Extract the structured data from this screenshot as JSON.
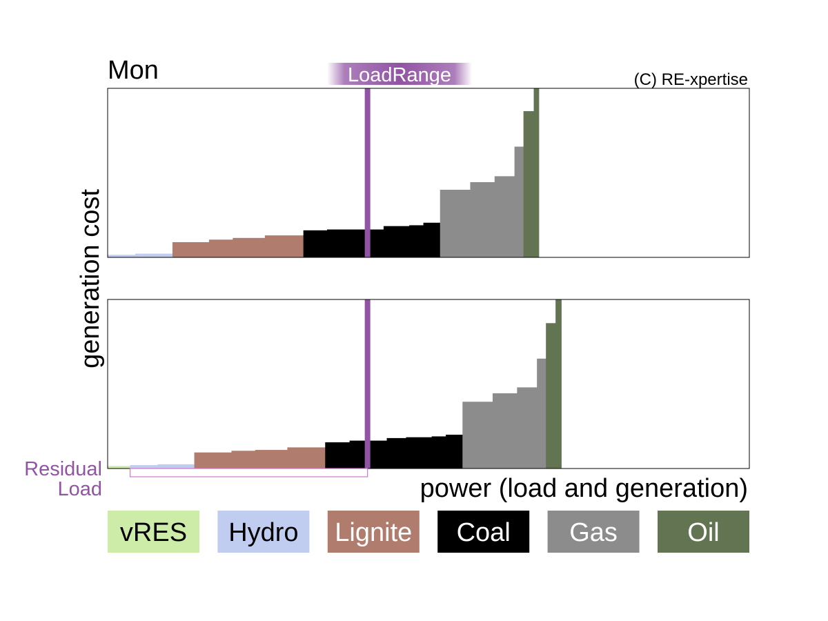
{
  "day_label": "Mon",
  "badge_label": "LoadRange",
  "copyright": "(C) RE-xpertise",
  "ylabel": "generation cost",
  "xlabel": "power (load and generation)",
  "residual_label": {
    "line1": "Residual",
    "line2": "Load"
  },
  "colors": {
    "vRES": "#cdeca8",
    "Hydro": "#c1cdf0",
    "Lignite": "#b07c6e",
    "Coal": "#000000",
    "Gas": "#8c8c8c",
    "Oil": "#637452",
    "load_marker": "#9154a4",
    "residual_box": "#cc77cc"
  },
  "legend": [
    {
      "name": "vRES",
      "text_color": "#000000"
    },
    {
      "name": "Hydro",
      "text_color": "#000000"
    },
    {
      "name": "Lignite",
      "text_color": "#ffffff"
    },
    {
      "name": "Coal",
      "text_color": "#ffffff"
    },
    {
      "name": "Gas",
      "text_color": "#ffffff"
    },
    {
      "name": "Oil",
      "text_color": "#ffffff"
    }
  ],
  "chart_data": [
    {
      "type": "bar",
      "chart": "merit-order-top",
      "xlim": [
        0,
        100
      ],
      "ylim": [
        0,
        100
      ],
      "load_x": 40.5,
      "blocks": [
        {
          "fuel": "Hydro",
          "x0": 0.0,
          "x1": 4.3,
          "y": 1.5
        },
        {
          "fuel": "Hydro",
          "x0": 4.3,
          "x1": 10.1,
          "y": 2.2
        },
        {
          "fuel": "Lignite",
          "x0": 10.1,
          "x1": 15.8,
          "y": 9.0
        },
        {
          "fuel": "Lignite",
          "x0": 15.8,
          "x1": 19.5,
          "y": 10.5
        },
        {
          "fuel": "Lignite",
          "x0": 19.5,
          "x1": 24.5,
          "y": 11.5
        },
        {
          "fuel": "Lignite",
          "x0": 24.5,
          "x1": 30.5,
          "y": 13.0
        },
        {
          "fuel": "Coal",
          "x0": 30.5,
          "x1": 34.2,
          "y": 16.0
        },
        {
          "fuel": "Coal",
          "x0": 34.2,
          "x1": 40.0,
          "y": 16.5
        },
        {
          "fuel": "Coal",
          "x0": 40.0,
          "x1": 43.0,
          "y": 16.5
        },
        {
          "fuel": "Coal",
          "x0": 43.0,
          "x1": 47.0,
          "y": 18.5
        },
        {
          "fuel": "Coal",
          "x0": 47.0,
          "x1": 49.2,
          "y": 19.0
        },
        {
          "fuel": "Coal",
          "x0": 49.2,
          "x1": 51.8,
          "y": 20.5
        },
        {
          "fuel": "Gas",
          "x0": 51.8,
          "x1": 56.5,
          "y": 40.0
        },
        {
          "fuel": "Gas",
          "x0": 56.5,
          "x1": 60.3,
          "y": 44.5
        },
        {
          "fuel": "Gas",
          "x0": 60.3,
          "x1": 63.4,
          "y": 48.0
        },
        {
          "fuel": "Gas",
          "x0": 63.4,
          "x1": 64.8,
          "y": 65.5
        },
        {
          "fuel": "Oil",
          "x0": 64.8,
          "x1": 66.4,
          "y": 86.5
        },
        {
          "fuel": "Oil",
          "x0": 66.4,
          "x1": 67.2,
          "y": 100.0
        }
      ]
    },
    {
      "type": "bar",
      "chart": "merit-order-bottom",
      "xlim": [
        0,
        100
      ],
      "ylim": [
        0,
        100
      ],
      "load_x": 40.5,
      "residual_range": [
        3.5,
        40.5
      ],
      "blocks": [
        {
          "fuel": "vRES",
          "x0": 0.0,
          "x1": 3.5,
          "y": 1.5
        },
        {
          "fuel": "Hydro",
          "x0": 3.5,
          "x1": 7.8,
          "y": 2.0
        },
        {
          "fuel": "Hydro",
          "x0": 7.8,
          "x1": 13.5,
          "y": 2.5
        },
        {
          "fuel": "Lignite",
          "x0": 13.5,
          "x1": 19.3,
          "y": 9.5
        },
        {
          "fuel": "Lignite",
          "x0": 19.3,
          "x1": 23.0,
          "y": 10.5
        },
        {
          "fuel": "Lignite",
          "x0": 23.0,
          "x1": 28.0,
          "y": 11.0
        },
        {
          "fuel": "Lignite",
          "x0": 28.0,
          "x1": 33.9,
          "y": 12.5
        },
        {
          "fuel": "Coal",
          "x0": 33.9,
          "x1": 37.7,
          "y": 15.5
        },
        {
          "fuel": "Coal",
          "x0": 37.7,
          "x1": 43.5,
          "y": 16.5
        },
        {
          "fuel": "Coal",
          "x0": 43.5,
          "x1": 46.5,
          "y": 18.0
        },
        {
          "fuel": "Coal",
          "x0": 46.5,
          "x1": 50.5,
          "y": 18.5
        },
        {
          "fuel": "Coal",
          "x0": 50.5,
          "x1": 52.7,
          "y": 19.0
        },
        {
          "fuel": "Coal",
          "x0": 52.7,
          "x1": 55.3,
          "y": 20.0
        },
        {
          "fuel": "Gas",
          "x0": 55.3,
          "x1": 60.0,
          "y": 39.5
        },
        {
          "fuel": "Gas",
          "x0": 60.0,
          "x1": 63.8,
          "y": 44.5
        },
        {
          "fuel": "Gas",
          "x0": 63.8,
          "x1": 66.9,
          "y": 48.0
        },
        {
          "fuel": "Gas",
          "x0": 66.9,
          "x1": 68.3,
          "y": 65.0
        },
        {
          "fuel": "Oil",
          "x0": 68.3,
          "x1": 69.8,
          "y": 86.0
        },
        {
          "fuel": "Oil",
          "x0": 69.8,
          "x1": 70.7,
          "y": 100.0
        }
      ]
    }
  ]
}
